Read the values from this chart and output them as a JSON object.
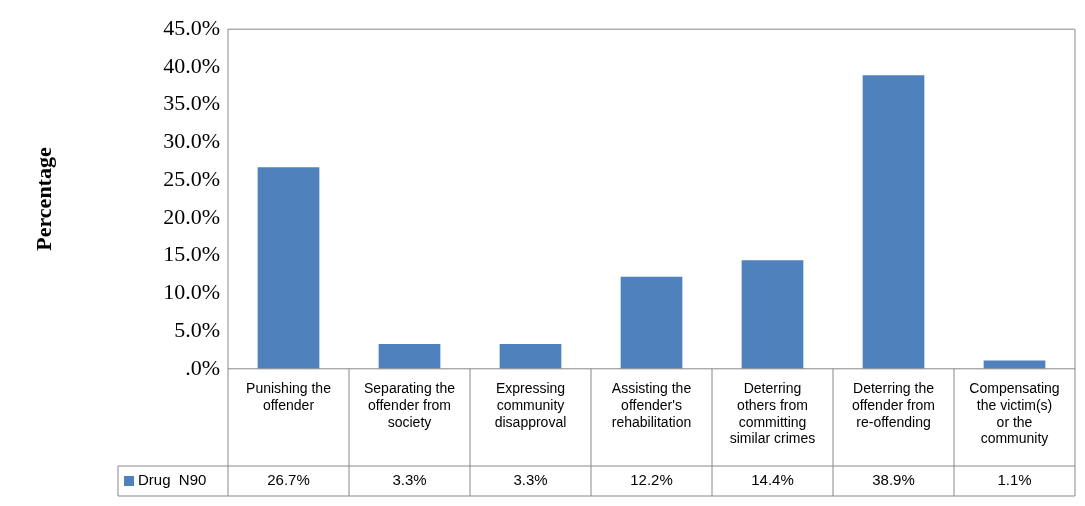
{
  "chart_data": {
    "type": "bar",
    "ylabel": "Percentage",
    "categories": [
      "Punishing the offender",
      "Separating the offender from society",
      "Expressing community disapproval",
      "Assisting the offender's rehabilitation",
      "Deterring others from committing similar crimes",
      "Deterring the offender from re-offending",
      "Compensating the victim(s) or the community"
    ],
    "series": [
      {
        "name": "Drug  N90",
        "color": "#4f81bd",
        "values": [
          26.7,
          3.3,
          3.3,
          12.2,
          14.4,
          38.9,
          1.1
        ],
        "value_labels": [
          "26.7%",
          "3.3%",
          "3.3%",
          "12.2%",
          "14.4%",
          "38.9%",
          "1.1%"
        ]
      }
    ],
    "ylim": [
      0,
      45
    ],
    "yticks": [
      {
        "value": 0,
        "label": ".0%"
      },
      {
        "value": 5,
        "label": "5.0%"
      },
      {
        "value": 10,
        "label": "10.0%"
      },
      {
        "value": 15,
        "label": "15.0%"
      },
      {
        "value": 20,
        "label": "20.0%"
      },
      {
        "value": 25,
        "label": "25.0%"
      },
      {
        "value": 30,
        "label": "30.0%"
      },
      {
        "value": 35,
        "label": "35.0%"
      },
      {
        "value": 40,
        "label": "40.0%"
      },
      {
        "value": 45,
        "label": "45.0%"
      }
    ],
    "grid": false,
    "legend": "bottom left"
  }
}
